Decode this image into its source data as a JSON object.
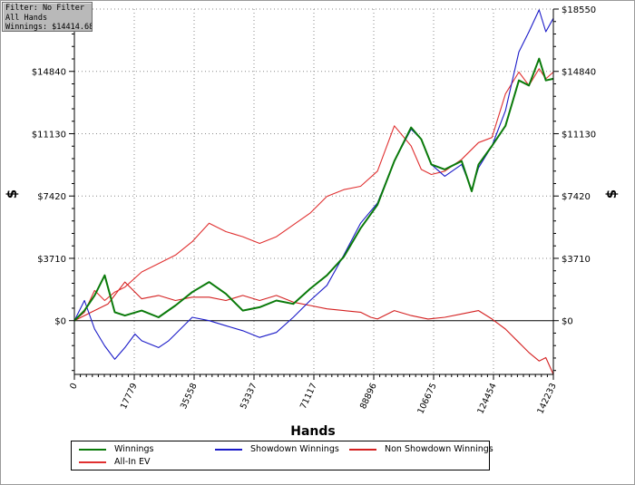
{
  "filter_box": {
    "line1": "Filter: No Filter",
    "line2": "All Hands",
    "line3": "Winnings: $14414.68"
  },
  "chart_data": {
    "type": "line",
    "title": "",
    "xlabel": "Hands",
    "ylabel": "$",
    "xlim": [
      0,
      142233
    ],
    "ylim": [
      -3200,
      18550
    ],
    "x_ticks": [
      0,
      17779,
      35558,
      53337,
      71117,
      88896,
      106675,
      124454,
      142233
    ],
    "x_tick_labels": [
      "0",
      "17779",
      "35558",
      "53337",
      "71117",
      "88896",
      "106675",
      "124454",
      "142233"
    ],
    "y_ticks": [
      0,
      3710,
      7420,
      11130,
      14840,
      18550
    ],
    "y_tick_labels": [
      "$0",
      "$3710",
      "$7420",
      "$11130",
      "$14840",
      "$18550"
    ],
    "grid": true,
    "legend_position": "bottom",
    "series": [
      {
        "name": "Winnings",
        "color": "#0a7a0a",
        "x": [
          0,
          3000,
          6000,
          9000,
          12000,
          15000,
          20000,
          25000,
          30000,
          35000,
          40000,
          45000,
          50000,
          55000,
          60000,
          65000,
          70000,
          75000,
          80000,
          85000,
          90000,
          95000,
          100000,
          103000,
          106000,
          110000,
          115000,
          118000,
          120000,
          124000,
          128000,
          132000,
          135000,
          138000,
          140000,
          142233
        ],
        "y": [
          0,
          600,
          1500,
          2700,
          500,
          300,
          600,
          200,
          900,
          1700,
          2300,
          1600,
          600,
          800,
          1200,
          1000,
          1900,
          2700,
          3800,
          5500,
          6900,
          9500,
          11500,
          10800,
          9300,
          9000,
          9500,
          7700,
          9300,
          10400,
          11600,
          14300,
          14000,
          15600,
          14300,
          14400
        ]
      },
      {
        "name": "Showdown Winnings",
        "color": "#1a1ac8",
        "x": [
          0,
          3000,
          6000,
          9000,
          12000,
          15000,
          18000,
          20000,
          25000,
          28000,
          30000,
          35000,
          40000,
          45000,
          50000,
          55000,
          60000,
          65000,
          70000,
          75000,
          80000,
          85000,
          90000,
          95000,
          100000,
          103000,
          106000,
          110000,
          115000,
          118000,
          120000,
          124000,
          128000,
          132000,
          135000,
          138000,
          140000,
          142233
        ],
        "y": [
          0,
          1200,
          -500,
          -1500,
          -2300,
          -1600,
          -800,
          -1200,
          -1600,
          -1200,
          -800,
          200,
          0,
          -300,
          -600,
          -1000,
          -700,
          200,
          1200,
          2100,
          3900,
          5800,
          7000,
          9500,
          11400,
          10800,
          9300,
          8600,
          9300,
          7800,
          9100,
          10400,
          12500,
          16000,
          17200,
          18500,
          17200,
          18000
        ]
      },
      {
        "name": "Non Showdown Winnings",
        "color": "#d42020",
        "x": [
          0,
          5000,
          10000,
          15000,
          20000,
          25000,
          30000,
          35000,
          40000,
          45000,
          50000,
          55000,
          60000,
          65000,
          70000,
          75000,
          80000,
          85000,
          88000,
          90000,
          95000,
          100000,
          105000,
          110000,
          115000,
          120000,
          124000,
          128000,
          132000,
          135000,
          138000,
          140000,
          142233
        ],
        "y": [
          0,
          500,
          1000,
          2300,
          1300,
          1500,
          1200,
          1400,
          1400,
          1200,
          1500,
          1200,
          1500,
          1100,
          900,
          700,
          600,
          500,
          200,
          100,
          600,
          300,
          100,
          200,
          400,
          600,
          100,
          -500,
          -1300,
          -1900,
          -2400,
          -2200,
          -3200
        ]
      },
      {
        "name": "All-In EV",
        "color": "#e03030",
        "x": [
          0,
          3000,
          6000,
          9000,
          12000,
          15000,
          20000,
          25000,
          30000,
          35000,
          40000,
          45000,
          50000,
          55000,
          60000,
          65000,
          70000,
          75000,
          80000,
          85000,
          90000,
          95000,
          100000,
          103000,
          106000,
          110000,
          115000,
          120000,
          124000,
          128000,
          132000,
          135000,
          138000,
          140000,
          142233
        ],
        "y": [
          0,
          500,
          1800,
          1200,
          1700,
          2000,
          2900,
          3400,
          3900,
          4700,
          5800,
          5300,
          5000,
          4600,
          5000,
          5700,
          6400,
          7400,
          7800,
          8000,
          8900,
          11600,
          10400,
          9000,
          8700,
          8900,
          9600,
          10600,
          10900,
          13500,
          14800,
          14000,
          15000,
          14400,
          14800
        ]
      }
    ]
  },
  "legend": {
    "items": [
      {
        "label": "Winnings",
        "color": "#0a7a0a"
      },
      {
        "label": "Showdown Winnings",
        "color": "#1a1ac8"
      },
      {
        "label": "Non Showdown Winnings",
        "color": "#d42020"
      },
      {
        "label": "All-In EV",
        "color": "#e03030"
      }
    ]
  }
}
